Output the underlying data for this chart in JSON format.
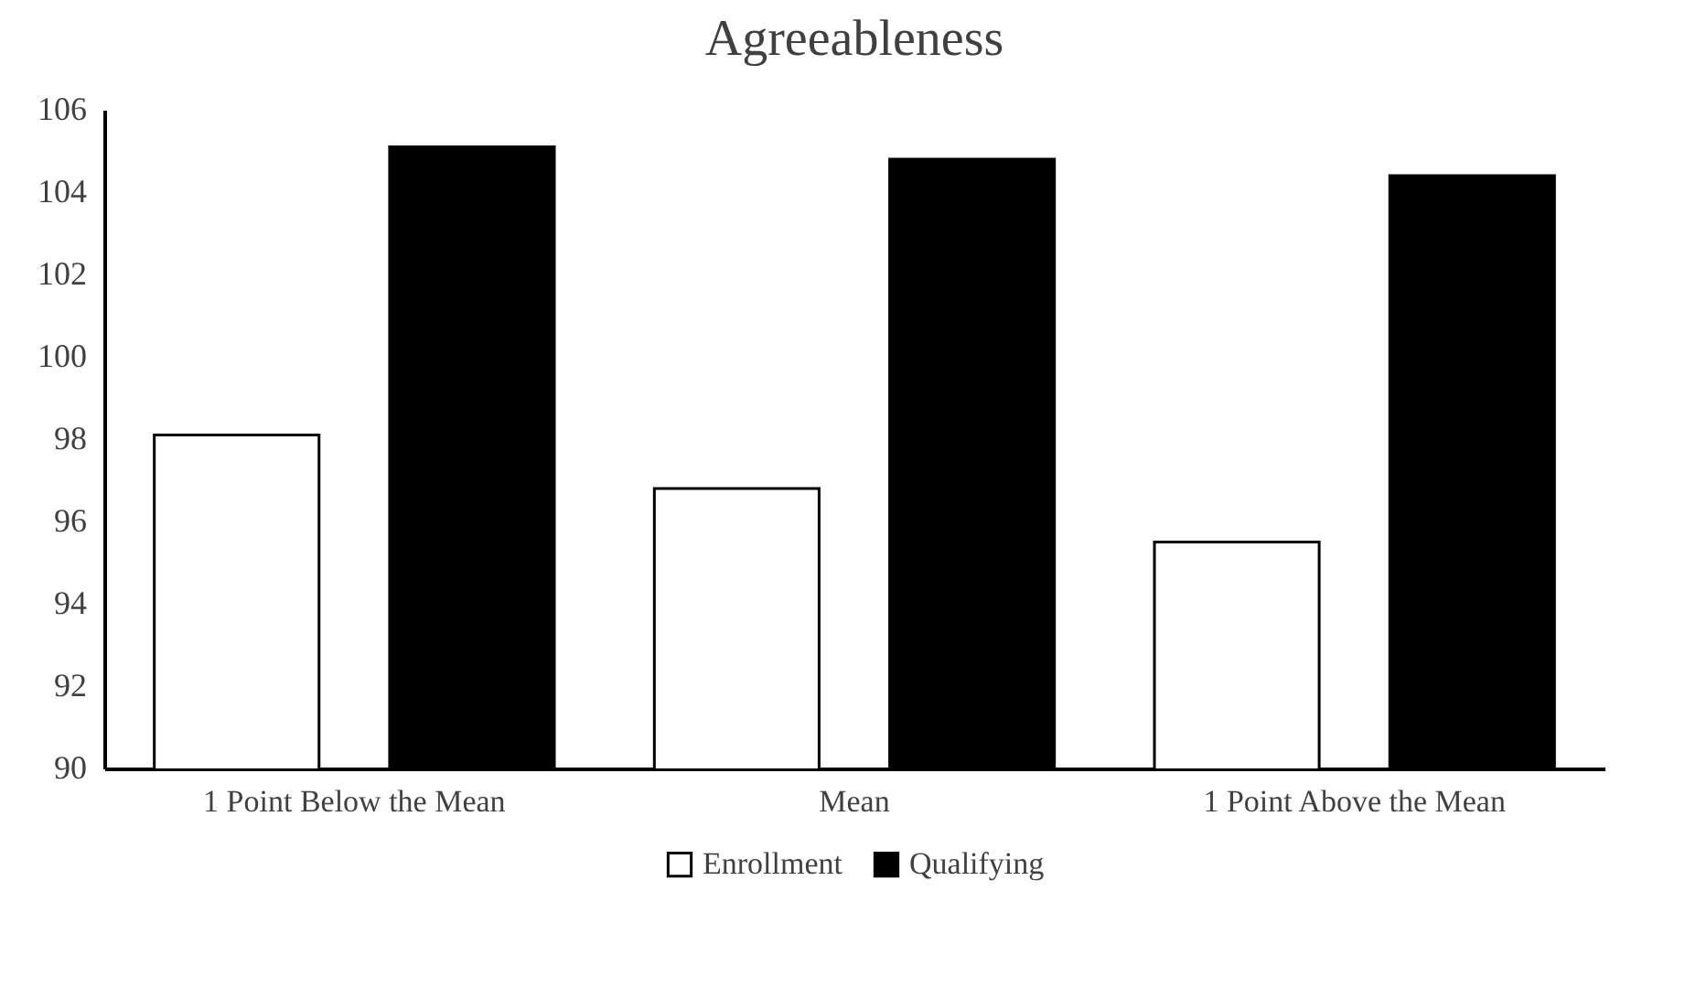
{
  "chart_data": {
    "type": "bar",
    "title": "Agreeableness",
    "categories": [
      "1 Point Below the Mean",
      "Mean",
      "1 Point Above the Mean"
    ],
    "series": [
      {
        "name": "Enrollment",
        "color": "#ffffff",
        "values": [
          98.1,
          96.8,
          95.5
        ]
      },
      {
        "name": "Qualifying",
        "color": "#000000",
        "values": [
          105.1,
          104.8,
          104.4
        ]
      }
    ],
    "ylim": [
      90,
      106
    ],
    "yticks": [
      90,
      92,
      94,
      96,
      98,
      100,
      102,
      104,
      106
    ],
    "grid": false,
    "legend": "bottom"
  }
}
